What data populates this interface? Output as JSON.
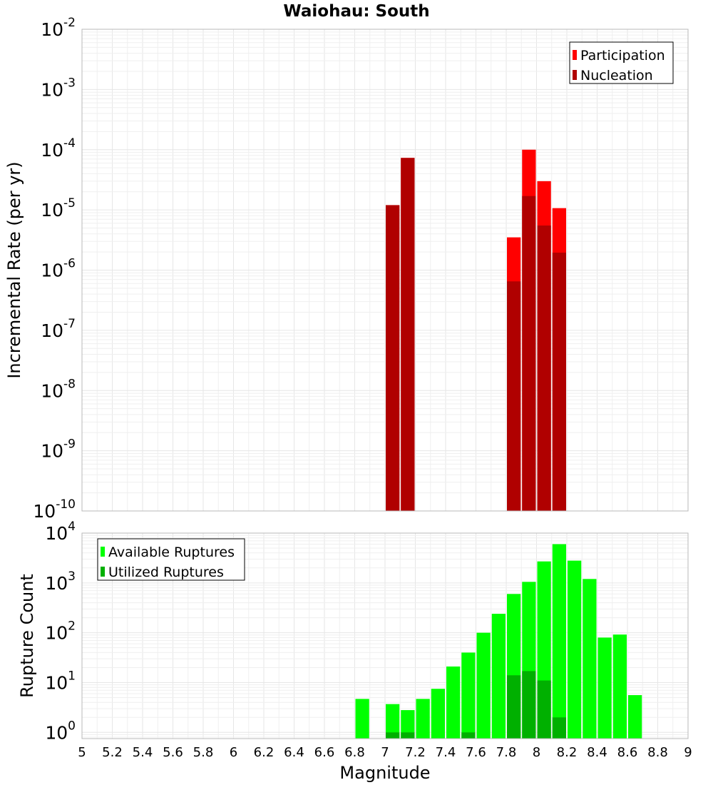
{
  "chart_data": [
    {
      "type": "bar",
      "title": "Waiohau: South",
      "xlabel": "",
      "ylabel": "Incremental Rate (per yr)",
      "yscale": "log",
      "ylim_exponents": [
        -10,
        -2
      ],
      "y_tick_labels": [
        {
          "base": "10",
          "exp": "-2"
        },
        {
          "base": "10",
          "exp": "-3"
        },
        {
          "base": "10",
          "exp": "-4"
        },
        {
          "base": "10",
          "exp": "-5"
        },
        {
          "base": "10",
          "exp": "-6"
        },
        {
          "base": "10",
          "exp": "-7"
        },
        {
          "base": "10",
          "exp": "-8"
        },
        {
          "base": "10",
          "exp": "-9"
        },
        {
          "base": "10",
          "exp": "-10"
        }
      ],
      "xlim": [
        5,
        9
      ],
      "bin_width": 0.1,
      "legend_position": "top-right",
      "series": [
        {
          "name": "Participation",
          "color": "#ff0000",
          "points": [
            {
              "x": 7.05,
              "y": 1.2e-05
            },
            {
              "x": 7.15,
              "y": 7.3e-05
            },
            {
              "x": 7.85,
              "y": 3.5e-06
            },
            {
              "x": 7.95,
              "y": 0.0001
            },
            {
              "x": 8.05,
              "y": 3e-05
            },
            {
              "x": 8.15,
              "y": 1.07e-05
            }
          ]
        },
        {
          "name": "Nucleation",
          "color": "#b00000",
          "points": [
            {
              "x": 7.05,
              "y": 1.2e-05
            },
            {
              "x": 7.15,
              "y": 7.3e-05
            },
            {
              "x": 7.85,
              "y": 6.5e-07
            },
            {
              "x": 7.95,
              "y": 1.7e-05
            },
            {
              "x": 8.05,
              "y": 5.5e-06
            },
            {
              "x": 8.15,
              "y": 1.95e-06
            }
          ]
        }
      ]
    },
    {
      "type": "bar",
      "title": "",
      "xlabel": "Magnitude",
      "ylabel": "Rupture Count",
      "yscale": "log",
      "ylim": [
        0.75,
        10000
      ],
      "y_tick_labels": [
        {
          "base": "10",
          "exp": "4"
        },
        {
          "base": "10",
          "exp": "3"
        },
        {
          "base": "10",
          "exp": "2"
        },
        {
          "base": "10",
          "exp": "1"
        },
        {
          "base": "10",
          "exp": "0"
        }
      ],
      "xlim": [
        5,
        9
      ],
      "x_tick_labels": [
        "5",
        "5.2",
        "5.4",
        "5.6",
        "5.8",
        "6",
        "6.2",
        "6.4",
        "6.6",
        "6.8",
        "7",
        "7.2",
        "7.4",
        "7.6",
        "7.8",
        "8",
        "8.2",
        "8.4",
        "8.6",
        "8.8",
        "9"
      ],
      "bin_width": 0.1,
      "legend_position": "top-left",
      "series": [
        {
          "name": "Available Ruptures",
          "color": "#00ff00",
          "points": [
            {
              "x": 6.85,
              "y": 4.7
            },
            {
              "x": 7.05,
              "y": 3.7
            },
            {
              "x": 7.15,
              "y": 2.8
            },
            {
              "x": 7.25,
              "y": 4.7
            },
            {
              "x": 7.35,
              "y": 7.5
            },
            {
              "x": 7.45,
              "y": 21
            },
            {
              "x": 7.55,
              "y": 40
            },
            {
              "x": 7.65,
              "y": 100
            },
            {
              "x": 7.75,
              "y": 240
            },
            {
              "x": 7.85,
              "y": 600
            },
            {
              "x": 7.95,
              "y": 1050
            },
            {
              "x": 8.05,
              "y": 2700
            },
            {
              "x": 8.15,
              "y": 6000
            },
            {
              "x": 8.25,
              "y": 2800
            },
            {
              "x": 8.35,
              "y": 1200
            },
            {
              "x": 8.45,
              "y": 80
            },
            {
              "x": 8.55,
              "y": 92
            },
            {
              "x": 8.65,
              "y": 5.6
            }
          ]
        },
        {
          "name": "Utilized Ruptures",
          "color": "#00b000",
          "points": [
            {
              "x": 7.05,
              "y": 1
            },
            {
              "x": 7.15,
              "y": 1
            },
            {
              "x": 7.55,
              "y": 1
            },
            {
              "x": 7.85,
              "y": 14
            },
            {
              "x": 7.95,
              "y": 17
            },
            {
              "x": 8.05,
              "y": 11
            },
            {
              "x": 8.15,
              "y": 2
            }
          ]
        }
      ]
    }
  ]
}
